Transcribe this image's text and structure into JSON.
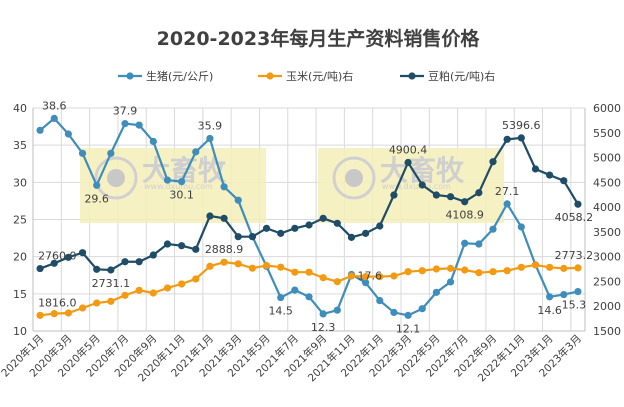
{
  "chart_data": {
    "type": "line",
    "title": "2020-2023年每月生产资料销售价格",
    "categories": [
      "2020年1月",
      "2020年2月",
      "2020年3月",
      "2020年4月",
      "2020年5月",
      "2020年6月",
      "2020年7月",
      "2020年8月",
      "2020年9月",
      "2020年10月",
      "2020年11月",
      "2020年12月",
      "2021年1月",
      "2021年2月",
      "2021年3月",
      "2021年4月",
      "2021年5月",
      "2021年6月",
      "2021年7月",
      "2021年8月",
      "2021年9月",
      "2021年10月",
      "2021年11月",
      "2021年12月",
      "2022年1月",
      "2022年2月",
      "2022年3月",
      "2022年4月",
      "2022年5月",
      "2022年6月",
      "2022年7月",
      "2022年8月",
      "2022年9月",
      "2022年10月",
      "2022年11月",
      "2022年12月",
      "2023年1月",
      "2023年2月",
      "2023年3月"
    ],
    "tick_labels": [
      "2020年1月",
      "2020年3月",
      "2020年5月",
      "2020年7月",
      "2020年9月",
      "2020年11月",
      "2021年1月",
      "2021年3月",
      "2021年5月",
      "2021年7月",
      "2021年9月",
      "2021年11月",
      "2022年1月",
      "2022年3月",
      "2022年5月",
      "2022年7月",
      "2022年9月",
      "2022年11月",
      "2023年1月",
      "2023年3月"
    ],
    "y_left": {
      "range": [
        10,
        40
      ],
      "ticks": [
        "10",
        "15",
        "20",
        "25",
        "30",
        "35",
        "40"
      ]
    },
    "y_right": {
      "range": [
        1500,
        6000
      ],
      "ticks": [
        "1500",
        "2000",
        "2500",
        "3000",
        "3500",
        "4000",
        "4500",
        "5000",
        "5500",
        "6000"
      ]
    },
    "grid": true,
    "legend_placement": "top",
    "series": [
      {
        "name": "生猪(元/公斤)",
        "axis": "left",
        "color": "#3e8dbb",
        "values": [
          37.0,
          38.6,
          36.5,
          33.9,
          29.6,
          33.9,
          37.9,
          37.7,
          35.5,
          30.3,
          30.1,
          34.1,
          35.9,
          29.4,
          27.6,
          22.7,
          18.7,
          14.5,
          15.5,
          14.6,
          12.3,
          12.8,
          17.6,
          16.5,
          14.1,
          12.5,
          12.1,
          13.0,
          15.2,
          16.6,
          21.8,
          21.7,
          23.7,
          27.1,
          24.0,
          18.9,
          14.6,
          14.9,
          15.3
        ],
        "labels": [
          {
            "i": 1,
            "text": "38.6",
            "pos": "above"
          },
          {
            "i": 4,
            "text": "29.6",
            "pos": "below"
          },
          {
            "i": 6,
            "text": "37.9",
            "pos": "above"
          },
          {
            "i": 10,
            "text": "30.1",
            "pos": "below"
          },
          {
            "i": 12,
            "text": "35.9",
            "pos": "above"
          },
          {
            "i": 17,
            "text": "14.5",
            "pos": "below"
          },
          {
            "i": 20,
            "text": "12.3",
            "pos": "below"
          },
          {
            "i": 22,
            "text": "17.6",
            "pos": "right"
          },
          {
            "i": 26,
            "text": "12.1",
            "pos": "below"
          },
          {
            "i": 33,
            "text": "27.1",
            "pos": "above"
          },
          {
            "i": 36,
            "text": "14.6",
            "pos": "below"
          },
          {
            "i": 38,
            "text": "15.3",
            "pos": "below"
          }
        ]
      },
      {
        "name": "玉米(元/吨)右",
        "axis": "right",
        "color": "#f39a12",
        "values": [
          1816.0,
          1850,
          1863,
          1964,
          2065,
          2099,
          2220,
          2321,
          2267,
          2368,
          2449,
          2550,
          2806,
          2888.9,
          2855,
          2768,
          2822,
          2788,
          2687,
          2687,
          2575,
          2495,
          2610,
          2597,
          2597,
          2610,
          2697,
          2717,
          2751,
          2764,
          2731,
          2677,
          2697,
          2717,
          2785,
          2832,
          2785,
          2764,
          2773.2
        ],
        "labels": [
          {
            "i": 0,
            "text": "1816.0",
            "pos": "above"
          },
          {
            "i": 13,
            "text": "2888.9",
            "pos": "above"
          },
          {
            "i": 38,
            "text": "2773.2",
            "pos": "above"
          }
        ]
      },
      {
        "name": "豆粕(元/吨)右",
        "axis": "right",
        "color": "#1f4d68",
        "values": [
          2760.0,
          2866,
          2987,
          3080,
          2745,
          2731.1,
          2898,
          2898,
          3033,
          3255,
          3222,
          3148,
          3820,
          3774,
          3403,
          3403,
          3572,
          3470,
          3572,
          3639,
          3774,
          3673,
          3390,
          3470,
          3619,
          4244,
          4900.4,
          4446,
          4244,
          4210,
          4108.9,
          4290,
          4916,
          5368,
          5396.6,
          4769,
          4647,
          4533,
          4058.2
        ],
        "labels": [
          {
            "i": 0,
            "text": "2760.0",
            "pos": "above"
          },
          {
            "i": 5,
            "text": "2731.1",
            "pos": "below"
          },
          {
            "i": 26,
            "text": "4900.4",
            "pos": "above"
          },
          {
            "i": 30,
            "text": "4108.9",
            "pos": "below"
          },
          {
            "i": 34,
            "text": "5396.6",
            "pos": "above"
          },
          {
            "i": 38,
            "text": "4058.2",
            "pos": "below"
          }
        ]
      }
    ]
  },
  "watermark": {
    "brand": "大畜牧",
    "url": "www.dxumu.com"
  }
}
